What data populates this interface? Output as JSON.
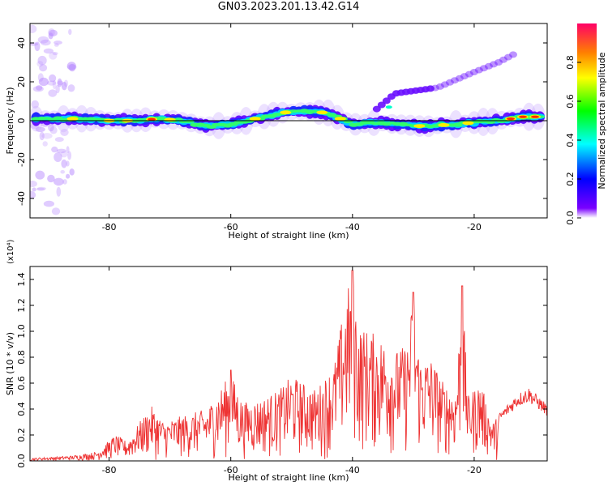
{
  "title": "GN03.2023.201.13.42.G14",
  "chart_data": [
    {
      "type": "heatmap",
      "xlabel": "Height of straight line (km)",
      "ylabel": "Frequency (Hz)",
      "xlim": [
        -93,
        -8
      ],
      "ylim": [
        -50,
        50
      ],
      "xticks": [
        -80,
        -60,
        -40,
        -20
      ],
      "yticks": [
        -40,
        -20,
        0,
        20,
        40
      ],
      "colorbar": {
        "label": "Normalized spectral amplitude",
        "range": [
          0,
          1
        ],
        "ticks": [
          "0.0",
          "0.2",
          "0.4",
          "0.6",
          "0.8"
        ]
      },
      "ridge": [
        {
          "x": -92,
          "y": 1
        },
        {
          "x": -88,
          "y": 1
        },
        {
          "x": -84,
          "y": 1
        },
        {
          "x": -80,
          "y": 0
        },
        {
          "x": -76,
          "y": 0
        },
        {
          "x": -72,
          "y": 1
        },
        {
          "x": -68,
          "y": 0
        },
        {
          "x": -64,
          "y": -3
        },
        {
          "x": -60,
          "y": -2
        },
        {
          "x": -56,
          "y": 1
        },
        {
          "x": -52,
          "y": 4
        },
        {
          "x": -48,
          "y": 5
        },
        {
          "x": -44,
          "y": 4
        },
        {
          "x": -40,
          "y": -2
        },
        {
          "x": -36,
          "y": -1
        },
        {
          "x": -32,
          "y": -2
        },
        {
          "x": -28,
          "y": -3
        },
        {
          "x": -24,
          "y": -2
        },
        {
          "x": -20,
          "y": -1
        },
        {
          "x": -16,
          "y": 0
        },
        {
          "x": -12,
          "y": 2
        },
        {
          "x": -9,
          "y": 2
        }
      ],
      "branch": [
        {
          "x": -36,
          "y": 6
        },
        {
          "x": -33,
          "y": 14
        },
        {
          "x": -26,
          "y": 17
        },
        {
          "x": -20,
          "y": 25
        },
        {
          "x": -16,
          "y": 30
        },
        {
          "x": -13,
          "y": 35
        }
      ]
    },
    {
      "type": "line",
      "xlabel": "Height of straight line (km)",
      "ylabel": "SNR (10 * v/v)",
      "yunit": "(x10⁴)",
      "xlim": [
        -93,
        -8
      ],
      "ylim": [
        0,
        1.5
      ],
      "xticks": [
        -80,
        -60,
        -40,
        -20
      ],
      "yticks": [
        "0.0",
        "0.2",
        "0.4",
        "0.6",
        "0.8",
        "1.0",
        "1.2",
        "1.4"
      ],
      "color": "#ee3333",
      "envelope": [
        {
          "x": -93,
          "y": 0.02
        },
        {
          "x": -86,
          "y": 0.04
        },
        {
          "x": -82,
          "y": 0.07
        },
        {
          "x": -79,
          "y": 0.2
        },
        {
          "x": -77,
          "y": 0.15
        },
        {
          "x": -75,
          "y": 0.3
        },
        {
          "x": -73,
          "y": 0.42
        },
        {
          "x": -71,
          "y": 0.3
        },
        {
          "x": -68,
          "y": 0.35
        },
        {
          "x": -64,
          "y": 0.4
        },
        {
          "x": -60,
          "y": 0.68
        },
        {
          "x": -58,
          "y": 0.45
        },
        {
          "x": -55,
          "y": 0.48
        },
        {
          "x": -52,
          "y": 0.55
        },
        {
          "x": -50,
          "y": 0.66
        },
        {
          "x": -48,
          "y": 0.6
        },
        {
          "x": -46,
          "y": 0.55
        },
        {
          "x": -43,
          "y": 0.75
        },
        {
          "x": -41,
          "y": 1.3
        },
        {
          "x": -40,
          "y": 1.47
        },
        {
          "x": -39,
          "y": 1.05
        },
        {
          "x": -37,
          "y": 1.0
        },
        {
          "x": -35,
          "y": 0.95
        },
        {
          "x": -33,
          "y": 0.85
        },
        {
          "x": -31,
          "y": 0.9
        },
        {
          "x": -30,
          "y": 1.3
        },
        {
          "x": -29,
          "y": 0.8
        },
        {
          "x": -27,
          "y": 0.8
        },
        {
          "x": -25,
          "y": 0.6
        },
        {
          "x": -23,
          "y": 0.55
        },
        {
          "x": -22,
          "y": 1.35
        },
        {
          "x": -21,
          "y": 0.5
        },
        {
          "x": -19,
          "y": 0.62
        },
        {
          "x": -17,
          "y": 0.3
        },
        {
          "x": -15,
          "y": 0.4
        },
        {
          "x": -13,
          "y": 0.5
        },
        {
          "x": -11,
          "y": 0.55
        },
        {
          "x": -8,
          "y": 0.42
        }
      ]
    }
  ]
}
